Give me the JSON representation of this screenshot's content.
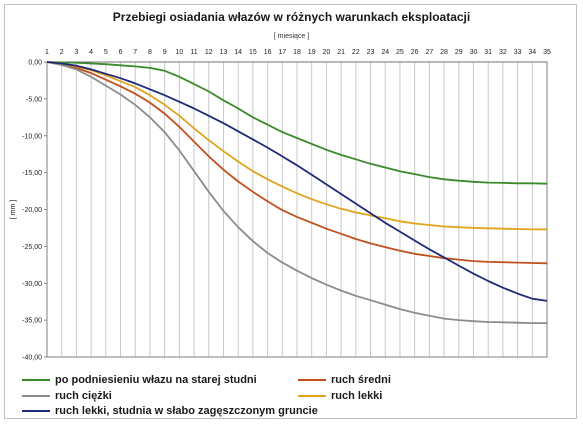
{
  "chart_data": {
    "type": "line",
    "title": "Przebiegi osiadania włazów w różnych warunkach eksploatacji",
    "xlabel": "[ miesiące ]",
    "ylabel": "[ mm ]",
    "x": [
      1,
      2,
      3,
      4,
      5,
      6,
      7,
      8,
      9,
      10,
      11,
      12,
      13,
      14,
      15,
      16,
      17,
      18,
      19,
      20,
      21,
      22,
      23,
      24,
      25,
      26,
      27,
      28,
      29,
      30,
      31,
      32,
      33,
      34,
      35
    ],
    "x_tick_labels": [
      "1",
      "2",
      "3",
      "4",
      "5",
      "6",
      "7",
      "8",
      "9",
      "10",
      "11",
      "12",
      "13",
      "14",
      "15",
      "16",
      "17",
      "18",
      "19",
      "20",
      "21",
      "22",
      "23",
      "24",
      "25",
      "26",
      "27",
      "28",
      "29",
      "30",
      "31",
      "32",
      "33",
      "34",
      "35"
    ],
    "y_tick_labels": [
      "0,00",
      "-5,00",
      "-10,00",
      "-15,00",
      "-20,00",
      "-25,00",
      "-30,00",
      "-35,00",
      "-40,00"
    ],
    "y_ticks": [
      0,
      -5,
      -10,
      -15,
      -20,
      -25,
      -30,
      -35,
      -40
    ],
    "xlim": [
      1,
      35
    ],
    "ylim": [
      -40,
      0
    ],
    "x_axis_position": "top",
    "grid": "vertical",
    "legend_position": "bottom",
    "series": [
      {
        "name": "po podniesieniu włazu na starej studni",
        "color": "#3a8a2a",
        "values": [
          0,
          -0.05,
          -0.1,
          -0.2,
          -0.3,
          -0.45,
          -0.6,
          -0.8,
          -1.2,
          -2.0,
          -3.0,
          -4.0,
          -5.2,
          -6.3,
          -7.5,
          -8.5,
          -9.5,
          -10.3,
          -11.1,
          -11.9,
          -12.6,
          -13.2,
          -13.8,
          -14.3,
          -14.8,
          -15.2,
          -15.6,
          -15.9,
          -16.1,
          -16.25,
          -16.35,
          -16.4,
          -16.45,
          -16.45,
          -16.5
        ]
      },
      {
        "name": "ruch średni",
        "color": "#c0501e",
        "values": [
          0,
          -0.3,
          -0.8,
          -1.5,
          -2.4,
          -3.3,
          -4.3,
          -5.5,
          -7.0,
          -8.8,
          -10.8,
          -12.8,
          -14.6,
          -16.2,
          -17.6,
          -18.9,
          -20.1,
          -21.0,
          -21.8,
          -22.6,
          -23.3,
          -24.0,
          -24.6,
          -25.1,
          -25.6,
          -26.0,
          -26.3,
          -26.6,
          -26.8,
          -27.0,
          -27.1,
          -27.15,
          -27.2,
          -27.25,
          -27.3
        ]
      },
      {
        "name": "ruch ciężki",
        "color": "#8c8c8c",
        "values": [
          0,
          -0.4,
          -1.0,
          -2.0,
          -3.2,
          -4.4,
          -5.8,
          -7.5,
          -9.5,
          -12.0,
          -14.8,
          -17.6,
          -20.2,
          -22.4,
          -24.3,
          -25.9,
          -27.2,
          -28.3,
          -29.3,
          -30.2,
          -31.0,
          -31.7,
          -32.3,
          -32.9,
          -33.5,
          -34.0,
          -34.4,
          -34.8,
          -35.0,
          -35.15,
          -35.25,
          -35.3,
          -35.35,
          -35.4,
          -35.4
        ]
      },
      {
        "name": "ruch lekki",
        "color": "#e0a41c",
        "values": [
          0,
          -0.2,
          -0.6,
          -1.1,
          -1.8,
          -2.6,
          -3.4,
          -4.5,
          -5.8,
          -7.3,
          -9.0,
          -10.6,
          -12.1,
          -13.5,
          -14.8,
          -15.9,
          -16.9,
          -17.8,
          -18.6,
          -19.3,
          -19.9,
          -20.4,
          -20.8,
          -21.2,
          -21.6,
          -21.9,
          -22.1,
          -22.3,
          -22.4,
          -22.5,
          -22.55,
          -22.6,
          -22.65,
          -22.7,
          -22.7
        ]
      },
      {
        "name": "ruch lekki, studnia w słabo zagęszczonym gruncie",
        "color": "#1f2a7a",
        "values": [
          0,
          -0.2,
          -0.5,
          -1.0,
          -1.6,
          -2.2,
          -2.9,
          -3.7,
          -4.5,
          -5.4,
          -6.3,
          -7.3,
          -8.3,
          -9.4,
          -10.5,
          -11.6,
          -12.8,
          -14.0,
          -15.3,
          -16.6,
          -17.9,
          -19.2,
          -20.5,
          -21.8,
          -23.0,
          -24.2,
          -25.4,
          -26.5,
          -27.6,
          -28.7,
          -29.7,
          -30.6,
          -31.4,
          -32.1,
          -32.4
        ]
      }
    ]
  }
}
